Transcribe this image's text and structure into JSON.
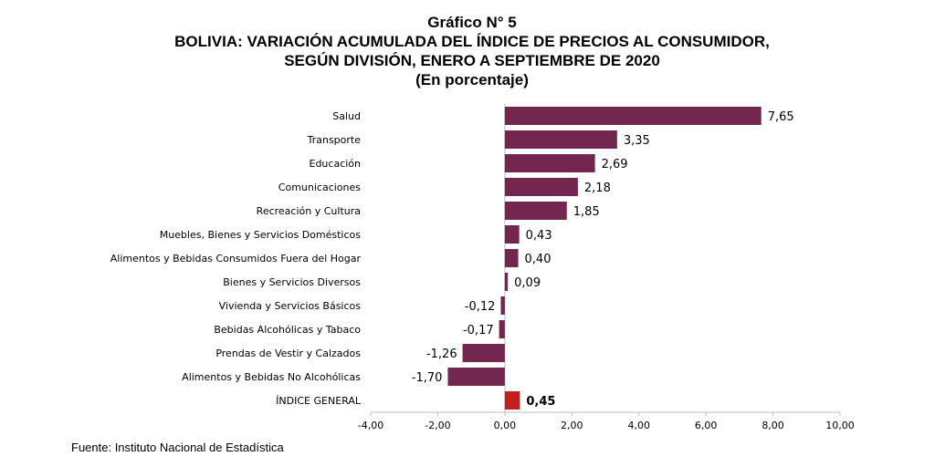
{
  "header": {
    "line1": "Gráfico N° 5",
    "line2": "BOLIVIA: VARIACIÓN ACUMULADA DEL ÍNDICE DE PRECIOS AL CONSUMIDOR,",
    "line3": "SEGÚN DIVISIÓN, ENERO A SEPTIEMBRE DE 2020",
    "line4": "(En porcentaje)"
  },
  "footer": {
    "source": "Fuente: Instituto Nacional de Estadística"
  },
  "colors": {
    "bar": "#73264f",
    "highlight": "#c0211f",
    "axis": "#bfbfbf"
  },
  "chart_data": {
    "type": "bar",
    "orientation": "horizontal",
    "categories": [
      "Salud",
      "Transporte",
      "Educación",
      "Comunicaciones",
      "Recreación y Cultura",
      "Muebles, Bienes y Servicios Domésticos",
      "Alimentos y Bebidas Consumidos Fuera del Hogar",
      "Bienes y Servicios Diversos",
      "Vivienda y Servicios Básicos",
      "Bebidas Alcohólicas y Tabaco",
      "Prendas de Vestir y Calzados",
      "Alimentos y Bebidas No Alcohólicas",
      "ÍNDICE GENERAL"
    ],
    "values": [
      7.65,
      3.35,
      2.69,
      2.18,
      1.85,
      0.43,
      0.4,
      0.09,
      -0.12,
      -0.17,
      -1.26,
      -1.7,
      0.45
    ],
    "value_labels": [
      "7,65",
      "3,35",
      "2,69",
      "2,18",
      "1,85",
      "0,43",
      "0,40",
      "0,09",
      "-0,12",
      "-0,17",
      "-1,26",
      "-1,70",
      "0,45"
    ],
    "highlight_category": "ÍNDICE GENERAL",
    "xlim": [
      -4,
      10
    ],
    "xticks": [
      -4,
      -2,
      0,
      2,
      4,
      6,
      8,
      10
    ],
    "xtick_labels": [
      "-4,00",
      "-2,00",
      "0,00",
      "2,00",
      "4,00",
      "6,00",
      "8,00",
      "10,00"
    ],
    "grid": false
  }
}
